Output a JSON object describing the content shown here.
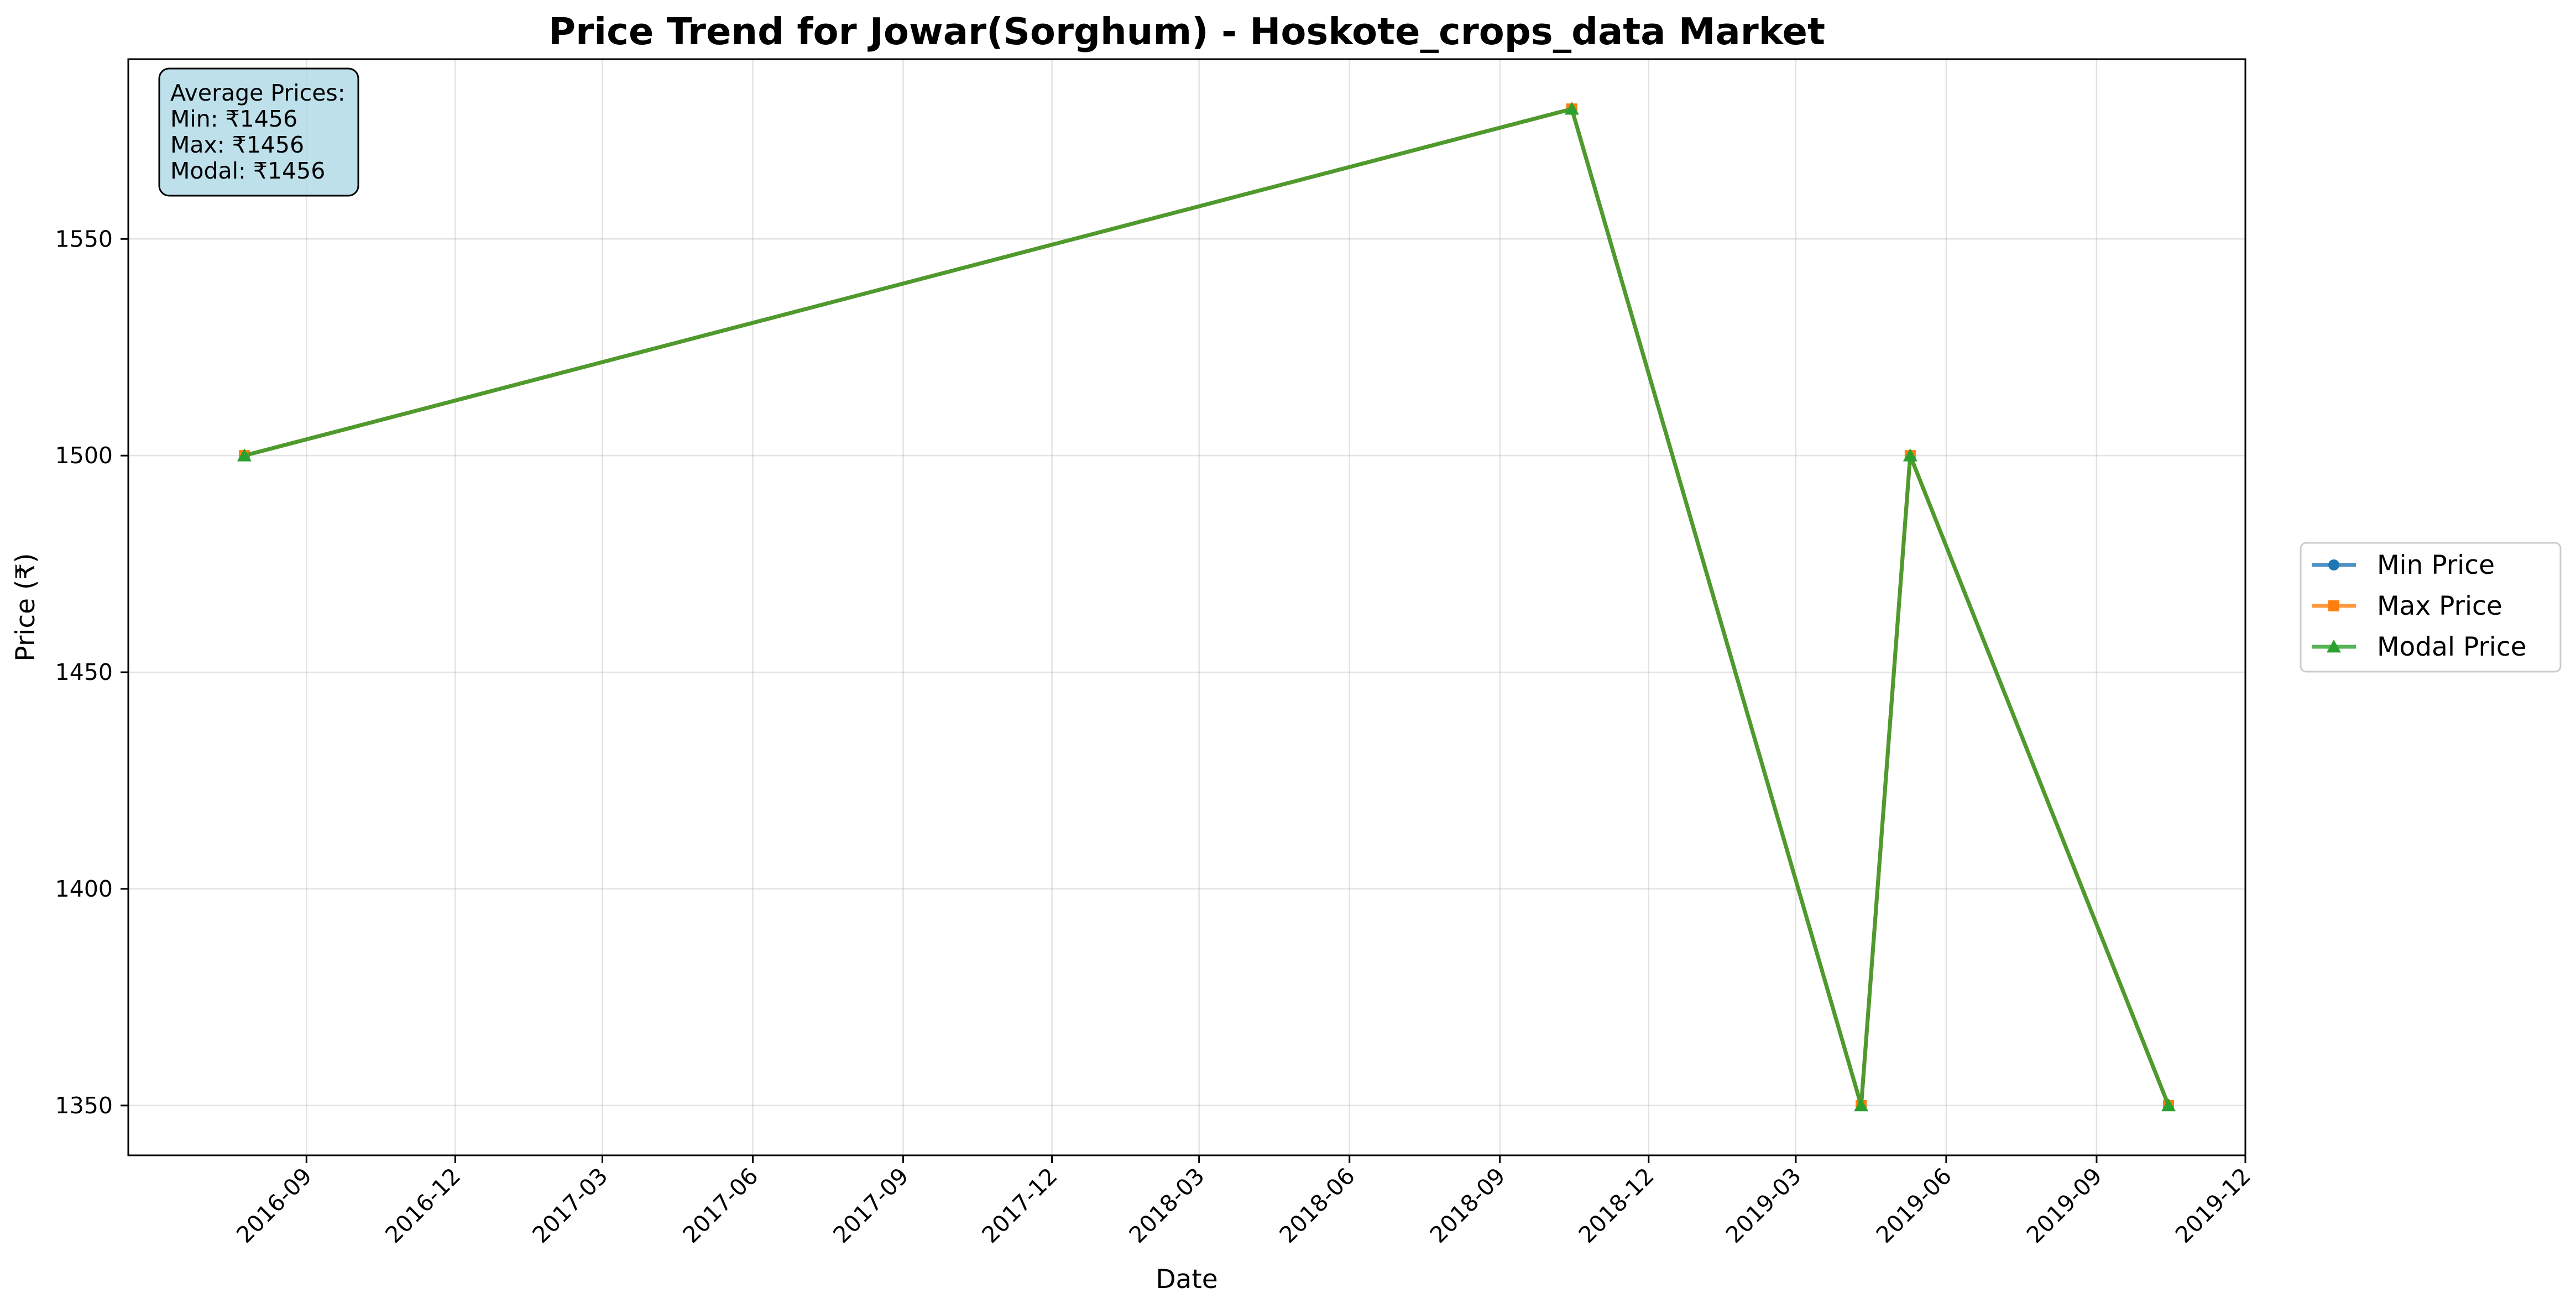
{
  "chart_data": {
    "type": "line",
    "title": "Price Trend for Jowar(Sorghum) - Hoskote_crops_data Market",
    "xlabel": "Date",
    "ylabel": "Price (₹)",
    "x": [
      "2016-07-25",
      "2018-10-15",
      "2019-04-10",
      "2019-05-10",
      "2019-10-15"
    ],
    "x_ticks": [
      "2016-09",
      "2016-12",
      "2017-03",
      "2017-06",
      "2017-09",
      "2017-12",
      "2018-03",
      "2018-06",
      "2018-09",
      "2018-12",
      "2019-03",
      "2019-06",
      "2019-09",
      "2019-12"
    ],
    "y_ticks": [
      1350,
      1400,
      1450,
      1500,
      1550
    ],
    "xlim": [
      "2016-05-15",
      "2019-12-01"
    ],
    "ylim": [
      1338.5,
      1591.5
    ],
    "grid": true,
    "legend_position": "outside-right",
    "series": [
      {
        "name": "Min Price",
        "values": [
          1500,
          1580,
          1350,
          1500,
          1350
        ],
        "color": "#1f77b4",
        "marker": "circle"
      },
      {
        "name": "Max Price",
        "values": [
          1500,
          1580,
          1350,
          1500,
          1350
        ],
        "color": "#ff7f0e",
        "marker": "square"
      },
      {
        "name": "Modal Price",
        "values": [
          1500,
          1580,
          1350,
          1500,
          1350
        ],
        "color": "#2ca02c",
        "marker": "triangle"
      }
    ],
    "stats_box": {
      "lines": [
        "Average Prices:",
        "Min: ₹1456",
        "Max: ₹1456",
        "Modal: ₹1456"
      ],
      "background": "#add8e6"
    }
  }
}
